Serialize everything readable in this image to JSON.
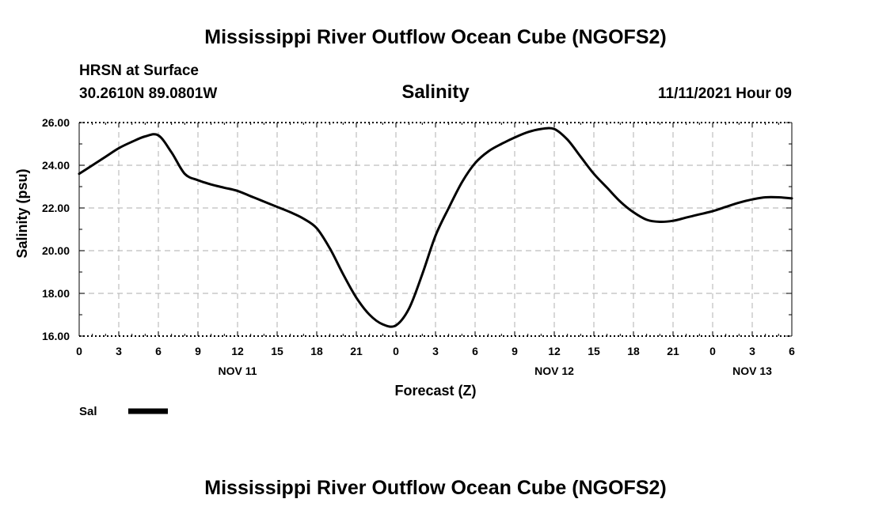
{
  "header": {
    "title": "Mississippi River Outflow Ocean Cube (NGOFS2)",
    "station": "HRSN at Surface",
    "coords": "30.2610N  89.0801W",
    "variable": "Salinity",
    "timestamp": "11/11/2021 Hour 09"
  },
  "legend": {
    "label": "Sal",
    "color": "#000000"
  },
  "footer": {
    "title": "Mississippi River Outflow Ocean Cube (NGOFS2)"
  },
  "chart_data": {
    "type": "line",
    "title": "Salinity",
    "xlabel": "Forecast (Z)",
    "ylabel": "Salinity (psu)",
    "xlim": [
      0,
      54
    ],
    "ylim": [
      16,
      26
    ],
    "x_tick_labels": [
      "0",
      "3",
      "6",
      "9",
      "12",
      "15",
      "18",
      "21",
      "0",
      "3",
      "6",
      "9",
      "12",
      "15",
      "18",
      "21",
      "0",
      "3",
      "6"
    ],
    "y_tick_labels": [
      "16.00",
      "18.00",
      "20.00",
      "22.00",
      "24.00",
      "26.00"
    ],
    "date_labels": [
      {
        "hour": 12,
        "label": "NOV 11"
      },
      {
        "hour": 36,
        "label": "NOV 12"
      },
      {
        "hour": 51,
        "label": "NOV 13"
      }
    ],
    "grid": true,
    "series": [
      {
        "name": "Sal",
        "color": "#000000",
        "x": [
          0,
          1,
          2,
          3,
          4,
          5,
          6,
          7,
          8,
          9,
          10,
          11,
          12,
          13,
          14,
          15,
          16,
          17,
          18,
          19,
          20,
          21,
          22,
          23,
          24,
          25,
          26,
          27,
          28,
          29,
          30,
          31,
          32,
          33,
          34,
          35,
          36,
          37,
          38,
          39,
          40,
          41,
          42,
          43,
          44,
          45,
          46,
          47,
          48,
          49,
          50,
          51,
          52,
          53,
          54
        ],
        "y": [
          23.6,
          24.0,
          24.4,
          24.8,
          25.1,
          25.35,
          25.4,
          24.6,
          23.6,
          23.3,
          23.1,
          22.95,
          22.8,
          22.55,
          22.3,
          22.05,
          21.8,
          21.5,
          21.05,
          20.1,
          18.9,
          17.8,
          17.0,
          16.55,
          16.5,
          17.3,
          18.9,
          20.7,
          22.0,
          23.2,
          24.1,
          24.65,
          25.0,
          25.3,
          25.55,
          25.7,
          25.7,
          25.2,
          24.4,
          23.6,
          22.95,
          22.3,
          21.8,
          21.45,
          21.35,
          21.4,
          21.55,
          21.7,
          21.85,
          22.05,
          22.25,
          22.4,
          22.5,
          22.5,
          22.45
        ]
      }
    ]
  }
}
